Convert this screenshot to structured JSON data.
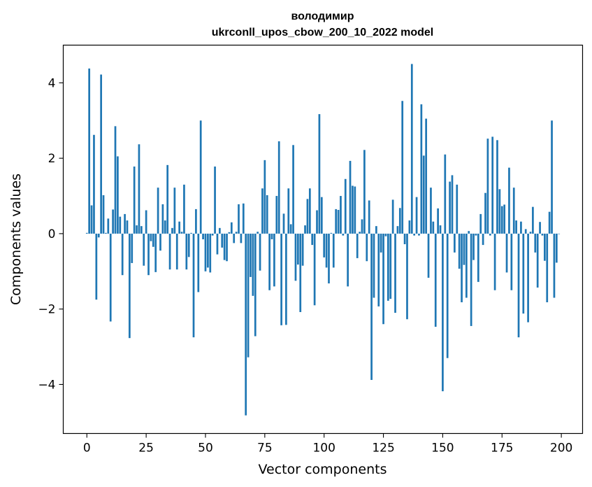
{
  "chart_data": {
    "type": "bar",
    "title_line1": "володимир",
    "title_line2": "ukrconll_upos_cbow_200_10_2022 model",
    "xlabel": "Vector components",
    "ylabel": "Components values",
    "xlim": [
      -9.95,
      208.95
    ],
    "ylim": [
      -5.3,
      5.0
    ],
    "xticks": [
      0,
      25,
      50,
      75,
      100,
      125,
      150,
      175,
      200
    ],
    "yticks": [
      -4,
      -2,
      0,
      2,
      4
    ],
    "ytick_labels": [
      "−4",
      "−2",
      "0",
      "2",
      "4"
    ],
    "bar_color": "#1f77b4",
    "grid": false,
    "values": [
      0.02,
      4.38,
      0.75,
      2.62,
      -1.75,
      -0.1,
      4.22,
      1.02,
      0.02,
      0.4,
      -2.33,
      0.64,
      2.85,
      2.05,
      0.45,
      -1.1,
      0.52,
      0.35,
      -2.77,
      -0.78,
      1.78,
      0.22,
      2.37,
      0.2,
      -0.85,
      0.62,
      -1.1,
      -0.2,
      -0.35,
      -1.02,
      1.22,
      -0.45,
      0.78,
      0.35,
      1.82,
      -0.95,
      0.15,
      1.22,
      -0.95,
      0.32,
      0.05,
      1.3,
      -0.95,
      -0.62,
      0.02,
      -2.75,
      0.65,
      -1.55,
      3.0,
      -0.15,
      -1.0,
      -0.9,
      -1.03,
      -0.05,
      1.78,
      -0.55,
      0.15,
      -0.37,
      -0.7,
      -0.73,
      0.04,
      0.3,
      -0.25,
      0.05,
      0.78,
      -0.25,
      0.8,
      -4.82,
      -3.28,
      -1.15,
      -1.65,
      -2.72,
      0.05,
      -0.98,
      1.2,
      1.95,
      1.02,
      -1.5,
      -0.15,
      -1.4,
      1.0,
      2.45,
      -2.43,
      0.53,
      -2.42,
      1.2,
      0.25,
      2.35,
      -1.25,
      -0.82,
      -2.08,
      -0.85,
      0.22,
      0.92,
      1.2,
      -0.3,
      -1.9,
      0.62,
      3.17,
      0.97,
      -0.63,
      -0.9,
      -1.32,
      0.02,
      -0.9,
      0.65,
      0.63,
      1.0,
      -0.05,
      1.45,
      -1.4,
      1.93,
      1.27,
      1.25,
      -0.65,
      0.05,
      0.38,
      2.22,
      -0.73,
      0.88,
      -3.88,
      -1.7,
      0.2,
      -1.93,
      -0.5,
      -2.4,
      -0.07,
      -1.78,
      -1.73,
      0.9,
      -2.1,
      0.2,
      0.68,
      3.52,
      -0.28,
      -2.27,
      0.35,
      4.5,
      -0.05,
      0.97,
      -0.05,
      3.43,
      2.07,
      3.05,
      -1.17,
      1.22,
      0.32,
      -2.47,
      0.67,
      0.22,
      -4.18,
      2.1,
      -3.3,
      1.38,
      1.55,
      -0.5,
      1.3,
      -0.93,
      -1.82,
      -0.83,
      -1.7,
      0.07,
      -2.45,
      -0.7,
      -0.05,
      -1.28,
      0.52,
      -0.3,
      1.08,
      2.52,
      -0.05,
      2.57,
      -1.5,
      2.48,
      1.18,
      0.73,
      0.77,
      -1.03,
      1.75,
      -1.5,
      1.22,
      0.35,
      -2.75,
      0.32,
      -2.12,
      0.12,
      -2.35,
      0.05,
      0.71,
      -0.5,
      -1.43,
      0.31,
      -0.05,
      -0.72,
      -1.82,
      0.58,
      3.0,
      -1.7,
      -0.77,
      0.0
    ]
  }
}
